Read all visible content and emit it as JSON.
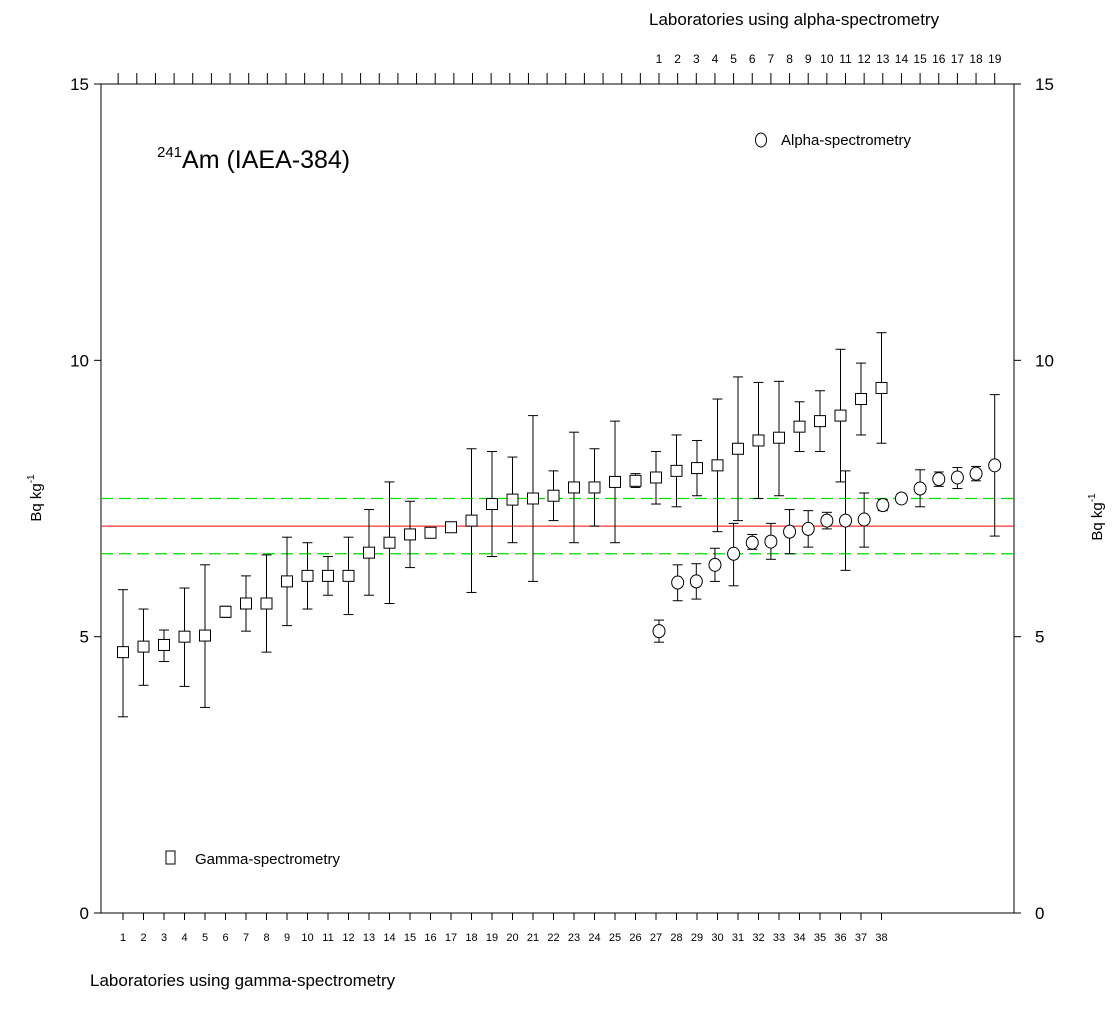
{
  "chart_data": {
    "type": "scatter",
    "title": "Am (IAEA-384)",
    "title_superscript": "241",
    "xlabel_bottom": "Laboratories using gamma-spectrometry",
    "xlabel_top": "Laboratories using alpha-spectrometry",
    "ylabel_left": "Bq kg",
    "ylabel_right": "Bq kg",
    "ylabel_superscript": "-1",
    "ylim": [
      0,
      15
    ],
    "y_ticks": [
      "0",
      "5",
      "10",
      "15"
    ],
    "x_ticks_bottom": [
      "1",
      "2",
      "3",
      "4",
      "5",
      "6",
      "7",
      "8",
      "9",
      "10",
      "11",
      "12",
      "13",
      "14",
      "15",
      "16",
      "17",
      "18",
      "19",
      "20",
      "21",
      "22",
      "23",
      "24",
      "25",
      "26",
      "27",
      "28",
      "29",
      "30",
      "31",
      "32",
      "33",
      "34",
      "35",
      "36",
      "37",
      "38"
    ],
    "x_ticks_top": [
      "1",
      "2",
      "3",
      "4",
      "5",
      "6",
      "7",
      "8",
      "9",
      "10",
      "11",
      "12",
      "13",
      "14",
      "15",
      "16",
      "17",
      "18",
      "19"
    ],
    "grid": false,
    "reference": {
      "value": 7.0,
      "lower": 6.5,
      "upper": 7.5,
      "color": "#ff0000",
      "band_color": "#00dd00"
    },
    "series": [
      {
        "name": "Gamma-spectrometry",
        "marker": "square",
        "points": [
          {
            "x": 1,
            "y": 4.72,
            "lo": 3.55,
            "hi": 5.85
          },
          {
            "x": 2,
            "y": 4.82,
            "lo": 4.12,
            "hi": 5.5
          },
          {
            "x": 3,
            "y": 4.85,
            "lo": 4.55,
            "hi": 5.12
          },
          {
            "x": 4,
            "y": 5.0,
            "lo": 4.1,
            "hi": 5.88
          },
          {
            "x": 5,
            "y": 5.02,
            "lo": 3.72,
            "hi": 6.3
          },
          {
            "x": 6,
            "y": 5.45,
            "lo": 5.35,
            "hi": 5.55
          },
          {
            "x": 7,
            "y": 5.6,
            "lo": 5.1,
            "hi": 6.1
          },
          {
            "x": 8,
            "y": 5.6,
            "lo": 4.72,
            "hi": 6.48
          },
          {
            "x": 9,
            "y": 6.0,
            "lo": 5.2,
            "hi": 6.8
          },
          {
            "x": 10,
            "y": 6.1,
            "lo": 5.5,
            "hi": 6.7
          },
          {
            "x": 11,
            "y": 6.1,
            "lo": 5.75,
            "hi": 6.45
          },
          {
            "x": 12,
            "y": 6.1,
            "lo": 5.4,
            "hi": 6.8
          },
          {
            "x": 13,
            "y": 6.52,
            "lo": 5.75,
            "hi": 7.3
          },
          {
            "x": 14,
            "y": 6.7,
            "lo": 5.6,
            "hi": 7.8
          },
          {
            "x": 15,
            "y": 6.85,
            "lo": 6.25,
            "hi": 7.45
          },
          {
            "x": 16,
            "y": 6.88,
            "lo": 6.82,
            "hi": 6.94
          },
          {
            "x": 17,
            "y": 6.98,
            "lo": 6.9,
            "hi": 7.06
          },
          {
            "x": 18,
            "y": 7.1,
            "lo": 5.8,
            "hi": 8.4
          },
          {
            "x": 19,
            "y": 7.4,
            "lo": 6.45,
            "hi": 8.35
          },
          {
            "x": 20,
            "y": 7.48,
            "lo": 6.7,
            "hi": 8.25
          },
          {
            "x": 21,
            "y": 7.5,
            "lo": 6.0,
            "hi": 9.0
          },
          {
            "x": 22,
            "y": 7.55,
            "lo": 7.1,
            "hi": 8.0
          },
          {
            "x": 23,
            "y": 7.7,
            "lo": 6.7,
            "hi": 8.7
          },
          {
            "x": 24,
            "y": 7.7,
            "lo": 7.0,
            "hi": 8.4
          },
          {
            "x": 25,
            "y": 7.8,
            "lo": 6.7,
            "hi": 8.9
          },
          {
            "x": 26,
            "y": 7.82,
            "lo": 7.7,
            "hi": 7.95
          },
          {
            "x": 27,
            "y": 7.88,
            "lo": 7.4,
            "hi": 8.35
          },
          {
            "x": 28,
            "y": 8.0,
            "lo": 7.35,
            "hi": 8.65
          },
          {
            "x": 29,
            "y": 8.05,
            "lo": 7.55,
            "hi": 8.55
          },
          {
            "x": 30,
            "y": 8.1,
            "lo": 6.9,
            "hi": 9.3
          },
          {
            "x": 31,
            "y": 8.4,
            "lo": 7.1,
            "hi": 9.7
          },
          {
            "x": 32,
            "y": 8.55,
            "lo": 7.5,
            "hi": 9.6
          },
          {
            "x": 33,
            "y": 8.6,
            "lo": 7.55,
            "hi": 9.62
          },
          {
            "x": 34,
            "y": 8.8,
            "lo": 8.35,
            "hi": 9.25
          },
          {
            "x": 35,
            "y": 8.9,
            "lo": 8.35,
            "hi": 9.45
          },
          {
            "x": 36,
            "y": 9.0,
            "lo": 7.8,
            "hi": 10.2
          },
          {
            "x": 37,
            "y": 9.3,
            "lo": 8.65,
            "hi": 9.95
          },
          {
            "x": 38,
            "y": 9.5,
            "lo": 8.5,
            "hi": 10.5
          }
        ]
      },
      {
        "name": "Alpha-spectrometry",
        "marker": "circle",
        "points": [
          {
            "x": 1,
            "y": 5.1,
            "lo": 4.9,
            "hi": 5.3
          },
          {
            "x": 2,
            "y": 5.98,
            "lo": 5.65,
            "hi": 6.3
          },
          {
            "x": 3,
            "y": 6.0,
            "lo": 5.68,
            "hi": 6.32
          },
          {
            "x": 4,
            "y": 6.3,
            "lo": 6.0,
            "hi": 6.6
          },
          {
            "x": 5,
            "y": 6.5,
            "lo": 5.92,
            "hi": 7.05
          },
          {
            "x": 6,
            "y": 6.7,
            "lo": 6.58,
            "hi": 6.85
          },
          {
            "x": 7,
            "y": 6.72,
            "lo": 6.4,
            "hi": 7.05
          },
          {
            "x": 8,
            "y": 6.9,
            "lo": 6.5,
            "hi": 7.3
          },
          {
            "x": 9,
            "y": 6.95,
            "lo": 6.62,
            "hi": 7.28
          },
          {
            "x": 10,
            "y": 7.1,
            "lo": 6.95,
            "hi": 7.25
          },
          {
            "x": 11,
            "y": 7.1,
            "lo": 6.2,
            "hi": 8.0
          },
          {
            "x": 12,
            "y": 7.12,
            "lo": 6.62,
            "hi": 7.6
          },
          {
            "x": 13,
            "y": 7.38,
            "lo": 7.28,
            "hi": 7.48
          },
          {
            "x": 14,
            "y": 7.5,
            "lo": 7.42,
            "hi": 7.58
          },
          {
            "x": 15,
            "y": 7.68,
            "lo": 7.35,
            "hi": 8.02
          },
          {
            "x": 16,
            "y": 7.85,
            "lo": 7.72,
            "hi": 7.98
          },
          {
            "x": 17,
            "y": 7.88,
            "lo": 7.68,
            "hi": 8.06
          },
          {
            "x": 18,
            "y": 7.95,
            "lo": 7.82,
            "hi": 8.08
          },
          {
            "x": 19,
            "y": 8.1,
            "lo": 6.82,
            "hi": 9.38
          }
        ]
      }
    ]
  }
}
